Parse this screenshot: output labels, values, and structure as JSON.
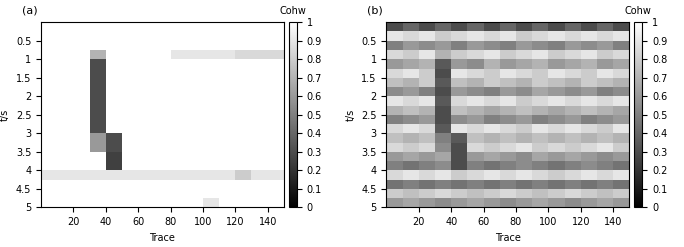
{
  "chart_data": [
    {
      "type": "heatmap",
      "title": "(a)",
      "x_label": "Trace",
      "y_label": "t/s",
      "xlim": [
        0,
        150
      ],
      "ylim": [
        5,
        0
      ],
      "xticks": [
        20,
        40,
        60,
        80,
        100,
        120,
        140
      ],
      "yticks": [
        0.5,
        1,
        1.5,
        2,
        2.5,
        3,
        3.5,
        4,
        4.5,
        5
      ],
      "color": "gray",
      "x_edges": [
        0,
        10,
        20,
        30,
        40,
        50,
        60,
        70,
        80,
        90,
        100,
        110,
        120,
        130,
        140,
        150
      ],
      "y_edges": [
        0,
        0.25,
        0.5,
        0.75,
        1,
        1.25,
        1.5,
        1.75,
        2,
        2.25,
        2.5,
        2.75,
        3,
        3.25,
        3.5,
        3.75,
        4,
        4.25,
        4.5,
        4.75,
        5
      ],
      "cells": [
        [
          1,
          1,
          1,
          1,
          1,
          1,
          1,
          1,
          1,
          1,
          1,
          1,
          1,
          1,
          1
        ],
        [
          1,
          1,
          1,
          1,
          1,
          1,
          1,
          1,
          1,
          1,
          1,
          1,
          1,
          1,
          1
        ],
        [
          1,
          1,
          1,
          1,
          1,
          1,
          1,
          1,
          1,
          1,
          1,
          1,
          1,
          1,
          1
        ],
        [
          1,
          1,
          1,
          0.7,
          1,
          1,
          1,
          1,
          0.9,
          0.9,
          0.9,
          0.9,
          0.85,
          0.85,
          0.85
        ],
        [
          1,
          1,
          1,
          0.3,
          1,
          1,
          1,
          1,
          1,
          1,
          1,
          1,
          1,
          1,
          1
        ],
        [
          1,
          1,
          1,
          0.3,
          1,
          1,
          1,
          1,
          1,
          1,
          1,
          1,
          1,
          1,
          1
        ],
        [
          1,
          1,
          1,
          0.3,
          1,
          1,
          1,
          1,
          1,
          1,
          1,
          1,
          1,
          1,
          1
        ],
        [
          1,
          1,
          1,
          0.3,
          1,
          1,
          1,
          1,
          1,
          1,
          1,
          1,
          1,
          1,
          1
        ],
        [
          1,
          1,
          1,
          0.3,
          1,
          1,
          1,
          1,
          1,
          1,
          1,
          1,
          1,
          1,
          1
        ],
        [
          1,
          1,
          1,
          0.3,
          1,
          1,
          1,
          1,
          1,
          1,
          1,
          1,
          1,
          1,
          1
        ],
        [
          1,
          1,
          1,
          0.3,
          1,
          1,
          1,
          1,
          1,
          1,
          1,
          1,
          1,
          1,
          1
        ],
        [
          1,
          1,
          1,
          0.3,
          1,
          1,
          1,
          1,
          1,
          1,
          1,
          1,
          1,
          1,
          1
        ],
        [
          1,
          1,
          1,
          0.6,
          0.3,
          1,
          1,
          1,
          1,
          1,
          1,
          1,
          1,
          1,
          1
        ],
        [
          1,
          1,
          1,
          0.6,
          0.3,
          1,
          1,
          1,
          1,
          1,
          1,
          1,
          1,
          1,
          1
        ],
        [
          1,
          1,
          1,
          1,
          0.25,
          1,
          1,
          1,
          1,
          1,
          1,
          1,
          1,
          1,
          1
        ],
        [
          1,
          1,
          1,
          1,
          0.25,
          1,
          1,
          1,
          1,
          1,
          1,
          1,
          1,
          1,
          1
        ],
        [
          0.9,
          0.9,
          0.9,
          0.9,
          0.9,
          0.9,
          0.9,
          0.9,
          0.9,
          0.9,
          0.9,
          0.9,
          0.8,
          0.9,
          0.9
        ],
        [
          1,
          1,
          1,
          1,
          1,
          1,
          1,
          1,
          1,
          1,
          1,
          1,
          1,
          1,
          1
        ],
        [
          1,
          1,
          1,
          1,
          1,
          1,
          1,
          1,
          1,
          1,
          1,
          1,
          1,
          1,
          1
        ],
        [
          1,
          1,
          1,
          1,
          1,
          1,
          1,
          1,
          1,
          1,
          0.9,
          1,
          1,
          1,
          1
        ]
      ],
      "colorbar": {
        "label": "Cohw",
        "range": [
          0,
          1
        ],
        "ticks": [
          0,
          0.1,
          0.2,
          0.3,
          0.4,
          0.5,
          0.6,
          0.7,
          0.8,
          0.9,
          1
        ]
      }
    },
    {
      "type": "heatmap",
      "title": "(b)",
      "x_label": "Trace",
      "y_label": "t/s",
      "xlim": [
        0,
        150
      ],
      "ylim": [
        5,
        0
      ],
      "xticks": [
        20,
        40,
        60,
        80,
        100,
        120,
        140
      ],
      "yticks": [
        0.5,
        1,
        1.5,
        2,
        2.5,
        3,
        3.5,
        4,
        4.5,
        5
      ],
      "color": "gray",
      "x_edges": [
        0,
        10,
        20,
        30,
        40,
        50,
        60,
        70,
        80,
        90,
        100,
        110,
        120,
        130,
        140,
        150
      ],
      "y_edges": [
        0,
        0.25,
        0.5,
        0.75,
        1,
        1.25,
        1.5,
        1.75,
        2,
        2.25,
        2.5,
        2.75,
        3,
        3.25,
        3.5,
        3.75,
        4,
        4.25,
        4.5,
        4.75,
        5
      ],
      "cells": [
        [
          0.3,
          0.4,
          0.3,
          0.4,
          0.3,
          0.4,
          0.3,
          0.4,
          0.3,
          0.4,
          0.3,
          0.4,
          0.3,
          0.4,
          0.3
        ],
        [
          0.9,
          0.85,
          0.9,
          0.8,
          0.85,
          0.9,
          0.85,
          0.9,
          0.8,
          0.85,
          0.9,
          0.85,
          0.9,
          0.85,
          0.9
        ],
        [
          0.5,
          0.6,
          0.55,
          0.6,
          0.5,
          0.6,
          0.55,
          0.5,
          0.6,
          0.55,
          0.5,
          0.6,
          0.55,
          0.6,
          0.5
        ],
        [
          0.85,
          0.8,
          0.9,
          0.7,
          0.8,
          0.85,
          0.9,
          0.8,
          0.85,
          0.9,
          0.8,
          0.85,
          0.9,
          0.8,
          0.85
        ],
        [
          0.6,
          0.65,
          0.7,
          0.35,
          0.6,
          0.55,
          0.7,
          0.6,
          0.65,
          0.7,
          0.6,
          0.65,
          0.7,
          0.6,
          0.65
        ],
        [
          0.85,
          0.9,
          0.8,
          0.3,
          0.9,
          0.85,
          0.8,
          0.9,
          0.85,
          0.8,
          0.9,
          0.85,
          0.8,
          0.9,
          0.85
        ],
        [
          0.75,
          0.7,
          0.8,
          0.35,
          0.75,
          0.7,
          0.8,
          0.75,
          0.7,
          0.8,
          0.75,
          0.7,
          0.8,
          0.75,
          0.7
        ],
        [
          0.55,
          0.6,
          0.5,
          0.3,
          0.6,
          0.55,
          0.5,
          0.6,
          0.55,
          0.65,
          0.6,
          0.55,
          0.6,
          0.5,
          0.55
        ],
        [
          0.9,
          0.85,
          0.9,
          0.35,
          0.85,
          0.9,
          0.85,
          0.9,
          0.8,
          0.85,
          0.9,
          0.85,
          0.9,
          0.85,
          0.9
        ],
        [
          0.7,
          0.75,
          0.7,
          0.3,
          0.75,
          0.7,
          0.65,
          0.7,
          0.75,
          0.7,
          0.65,
          0.7,
          0.75,
          0.7,
          0.65
        ],
        [
          0.5,
          0.55,
          0.6,
          0.3,
          0.55,
          0.6,
          0.5,
          0.55,
          0.6,
          0.5,
          0.55,
          0.6,
          0.5,
          0.55,
          0.6
        ],
        [
          0.85,
          0.9,
          0.85,
          0.35,
          0.9,
          0.85,
          0.9,
          0.85,
          0.8,
          0.9,
          0.85,
          0.9,
          0.85,
          0.8,
          0.9
        ],
        [
          0.75,
          0.7,
          0.75,
          0.5,
          0.35,
          0.75,
          0.7,
          0.75,
          0.7,
          0.75,
          0.7,
          0.75,
          0.7,
          0.75,
          0.7
        ],
        [
          0.85,
          0.8,
          0.85,
          0.55,
          0.3,
          0.85,
          0.8,
          0.85,
          0.9,
          0.8,
          0.85,
          0.8,
          0.85,
          0.9,
          0.8
        ],
        [
          0.6,
          0.65,
          0.6,
          0.65,
          0.3,
          0.6,
          0.65,
          0.6,
          0.55,
          0.65,
          0.6,
          0.65,
          0.6,
          0.55,
          0.6
        ],
        [
          0.5,
          0.45,
          0.5,
          0.55,
          0.3,
          0.5,
          0.45,
          0.5,
          0.55,
          0.5,
          0.45,
          0.5,
          0.55,
          0.5,
          0.45
        ],
        [
          0.85,
          0.9,
          0.85,
          0.9,
          0.8,
          0.85,
          0.9,
          0.85,
          0.9,
          0.85,
          0.8,
          0.85,
          0.9,
          0.85,
          0.9
        ],
        [
          0.45,
          0.5,
          0.45,
          0.5,
          0.45,
          0.5,
          0.45,
          0.5,
          0.45,
          0.5,
          0.45,
          0.5,
          0.45,
          0.5,
          0.45
        ],
        [
          0.8,
          0.75,
          0.8,
          0.85,
          0.8,
          0.75,
          0.8,
          0.85,
          0.8,
          0.75,
          0.8,
          0.85,
          0.8,
          0.75,
          0.8
        ],
        [
          0.6,
          0.65,
          0.6,
          0.55,
          0.6,
          0.65,
          0.6,
          0.55,
          0.6,
          0.65,
          0.6,
          0.55,
          0.6,
          0.65,
          0.6
        ]
      ],
      "colorbar": {
        "label": "Cohw",
        "range": [
          0,
          1
        ],
        "ticks": [
          0,
          0.1,
          0.2,
          0.3,
          0.4,
          0.5,
          0.6,
          0.7,
          0.8,
          0.9,
          1
        ]
      }
    }
  ]
}
